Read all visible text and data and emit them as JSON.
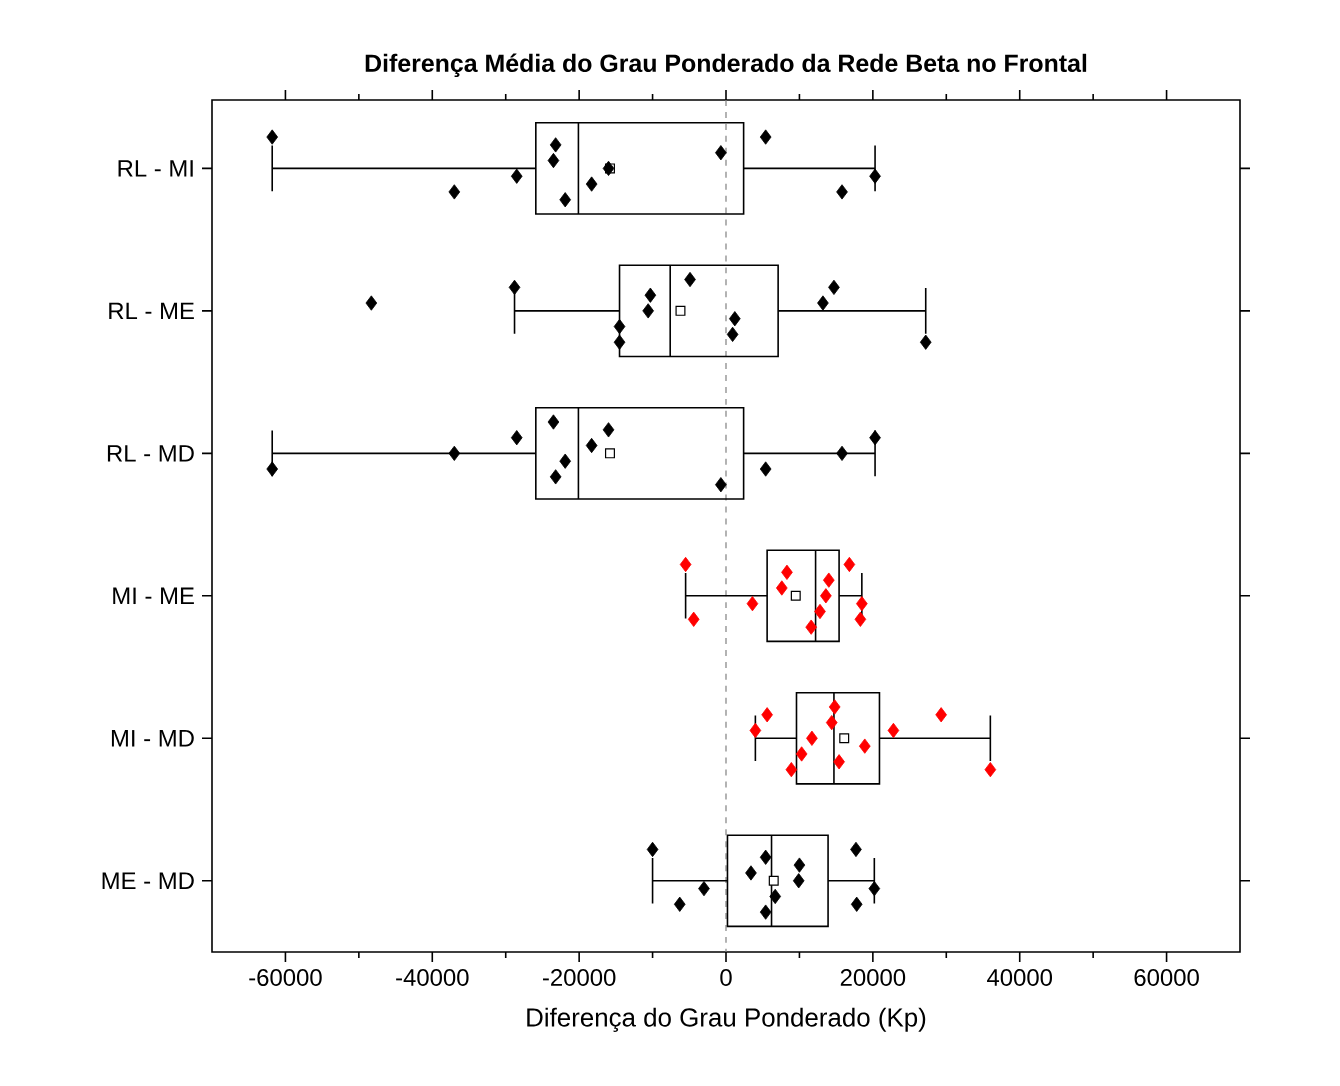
{
  "chart_data": {
    "type": "box",
    "orientation": "horizontal",
    "title": "Diferença Média do Grau Ponderado da Rede Beta no Frontal",
    "xlabel": "Diferença do Grau Ponderado (Kp)",
    "categories": [
      "RL - MI",
      "RL - ME",
      "RL - MD",
      "MI - ME",
      "MI - MD",
      "ME - MD"
    ],
    "xlim": [
      -70000,
      70000
    ],
    "xticks": [
      -60000,
      -40000,
      -20000,
      0,
      20000,
      40000,
      60000
    ],
    "marker": "diamond",
    "ref_lines": [
      {
        "axis": "x",
        "value": 0,
        "color": "#808080",
        "line_style": "dashed"
      }
    ],
    "series": [
      {
        "color": "#000000",
        "boxes": [
          {
            "low": -61800,
            "q1": -25900,
            "median": -20100,
            "q3": 2400,
            "high": 20300,
            "mean": -15800
          },
          {
            "low": -28800,
            "q1": -14500,
            "median": -7600,
            "q3": 7100,
            "high": 27200,
            "mean": -6200
          },
          {
            "low": -61800,
            "q1": -25900,
            "median": -20100,
            "q3": 2400,
            "high": 20300,
            "mean": -15800
          },
          {
            "low": -5500,
            "q1": 5600,
            "median": 12200,
            "q3": 15400,
            "high": 18500,
            "mean": 9500
          },
          {
            "low": 4000,
            "q1": 9600,
            "median": 14700,
            "q3": 20900,
            "high": 36000,
            "mean": 16100
          },
          {
            "low": -10000,
            "q1": 200,
            "median": 6200,
            "q3": 13900,
            "high": 20200,
            "mean": 6500
          }
        ]
      },
      {
        "type": "scatter",
        "color": "#000000",
        "x": [
          "RL - MI",
          "RL - MI",
          "RL - MI",
          "RL - MI",
          "RL - MI",
          "RL - MI",
          "RL - MI",
          "RL - MI",
          "RL - MI",
          "RL - MI",
          "RL - MI",
          "RL - MI",
          "RL - ME",
          "RL - ME",
          "RL - ME",
          "RL - ME",
          "RL - ME",
          "RL - ME",
          "RL - ME",
          "RL - ME",
          "RL - ME",
          "RL - ME",
          "RL - ME",
          "RL - ME",
          "RL - MD",
          "RL - MD",
          "RL - MD",
          "RL - MD",
          "RL - MD",
          "RL - MD",
          "RL - MD",
          "RL - MD",
          "RL - MD",
          "RL - MD",
          "RL - MD",
          "RL - MD",
          "ME - MD",
          "ME - MD",
          "ME - MD",
          "ME - MD",
          "ME - MD",
          "ME - MD",
          "ME - MD",
          "ME - MD",
          "ME - MD",
          "ME - MD",
          "ME - MD",
          "ME - MD"
        ],
        "values": [
          -61800,
          -37000,
          -28500,
          -23500,
          -23200,
          -21900,
          -18300,
          -16000,
          -700,
          5400,
          15800,
          20300,
          -48300,
          -28800,
          -14500,
          -14500,
          -10600,
          -10300,
          -4900,
          900,
          1200,
          13200,
          14700,
          27200,
          -61800,
          -37000,
          -28500,
          -23500,
          -23200,
          -21900,
          -18300,
          -16000,
          -700,
          5400,
          15800,
          20300,
          -10000,
          -6300,
          -3000,
          3400,
          5400,
          5400,
          6700,
          9900,
          10000,
          17700,
          17800,
          20200
        ]
      },
      {
        "type": "scatter",
        "color": "#ff0000",
        "x": [
          "MI - ME",
          "MI - ME",
          "MI - ME",
          "MI - ME",
          "MI - ME",
          "MI - ME",
          "MI - ME",
          "MI - ME",
          "MI - ME",
          "MI - ME",
          "MI - ME",
          "MI - ME",
          "MI - MD",
          "MI - MD",
          "MI - MD",
          "MI - MD",
          "MI - MD",
          "MI - MD",
          "MI - MD",
          "MI - MD",
          "MI - MD",
          "MI - MD",
          "MI - MD",
          "MI - MD"
        ],
        "values": [
          -5500,
          -4400,
          3600,
          7600,
          8300,
          11600,
          12800,
          13600,
          14000,
          16800,
          18300,
          18500,
          4000,
          5600,
          8900,
          10300,
          11700,
          14400,
          14800,
          15400,
          18900,
          22800,
          29300,
          36000
        ]
      }
    ]
  }
}
